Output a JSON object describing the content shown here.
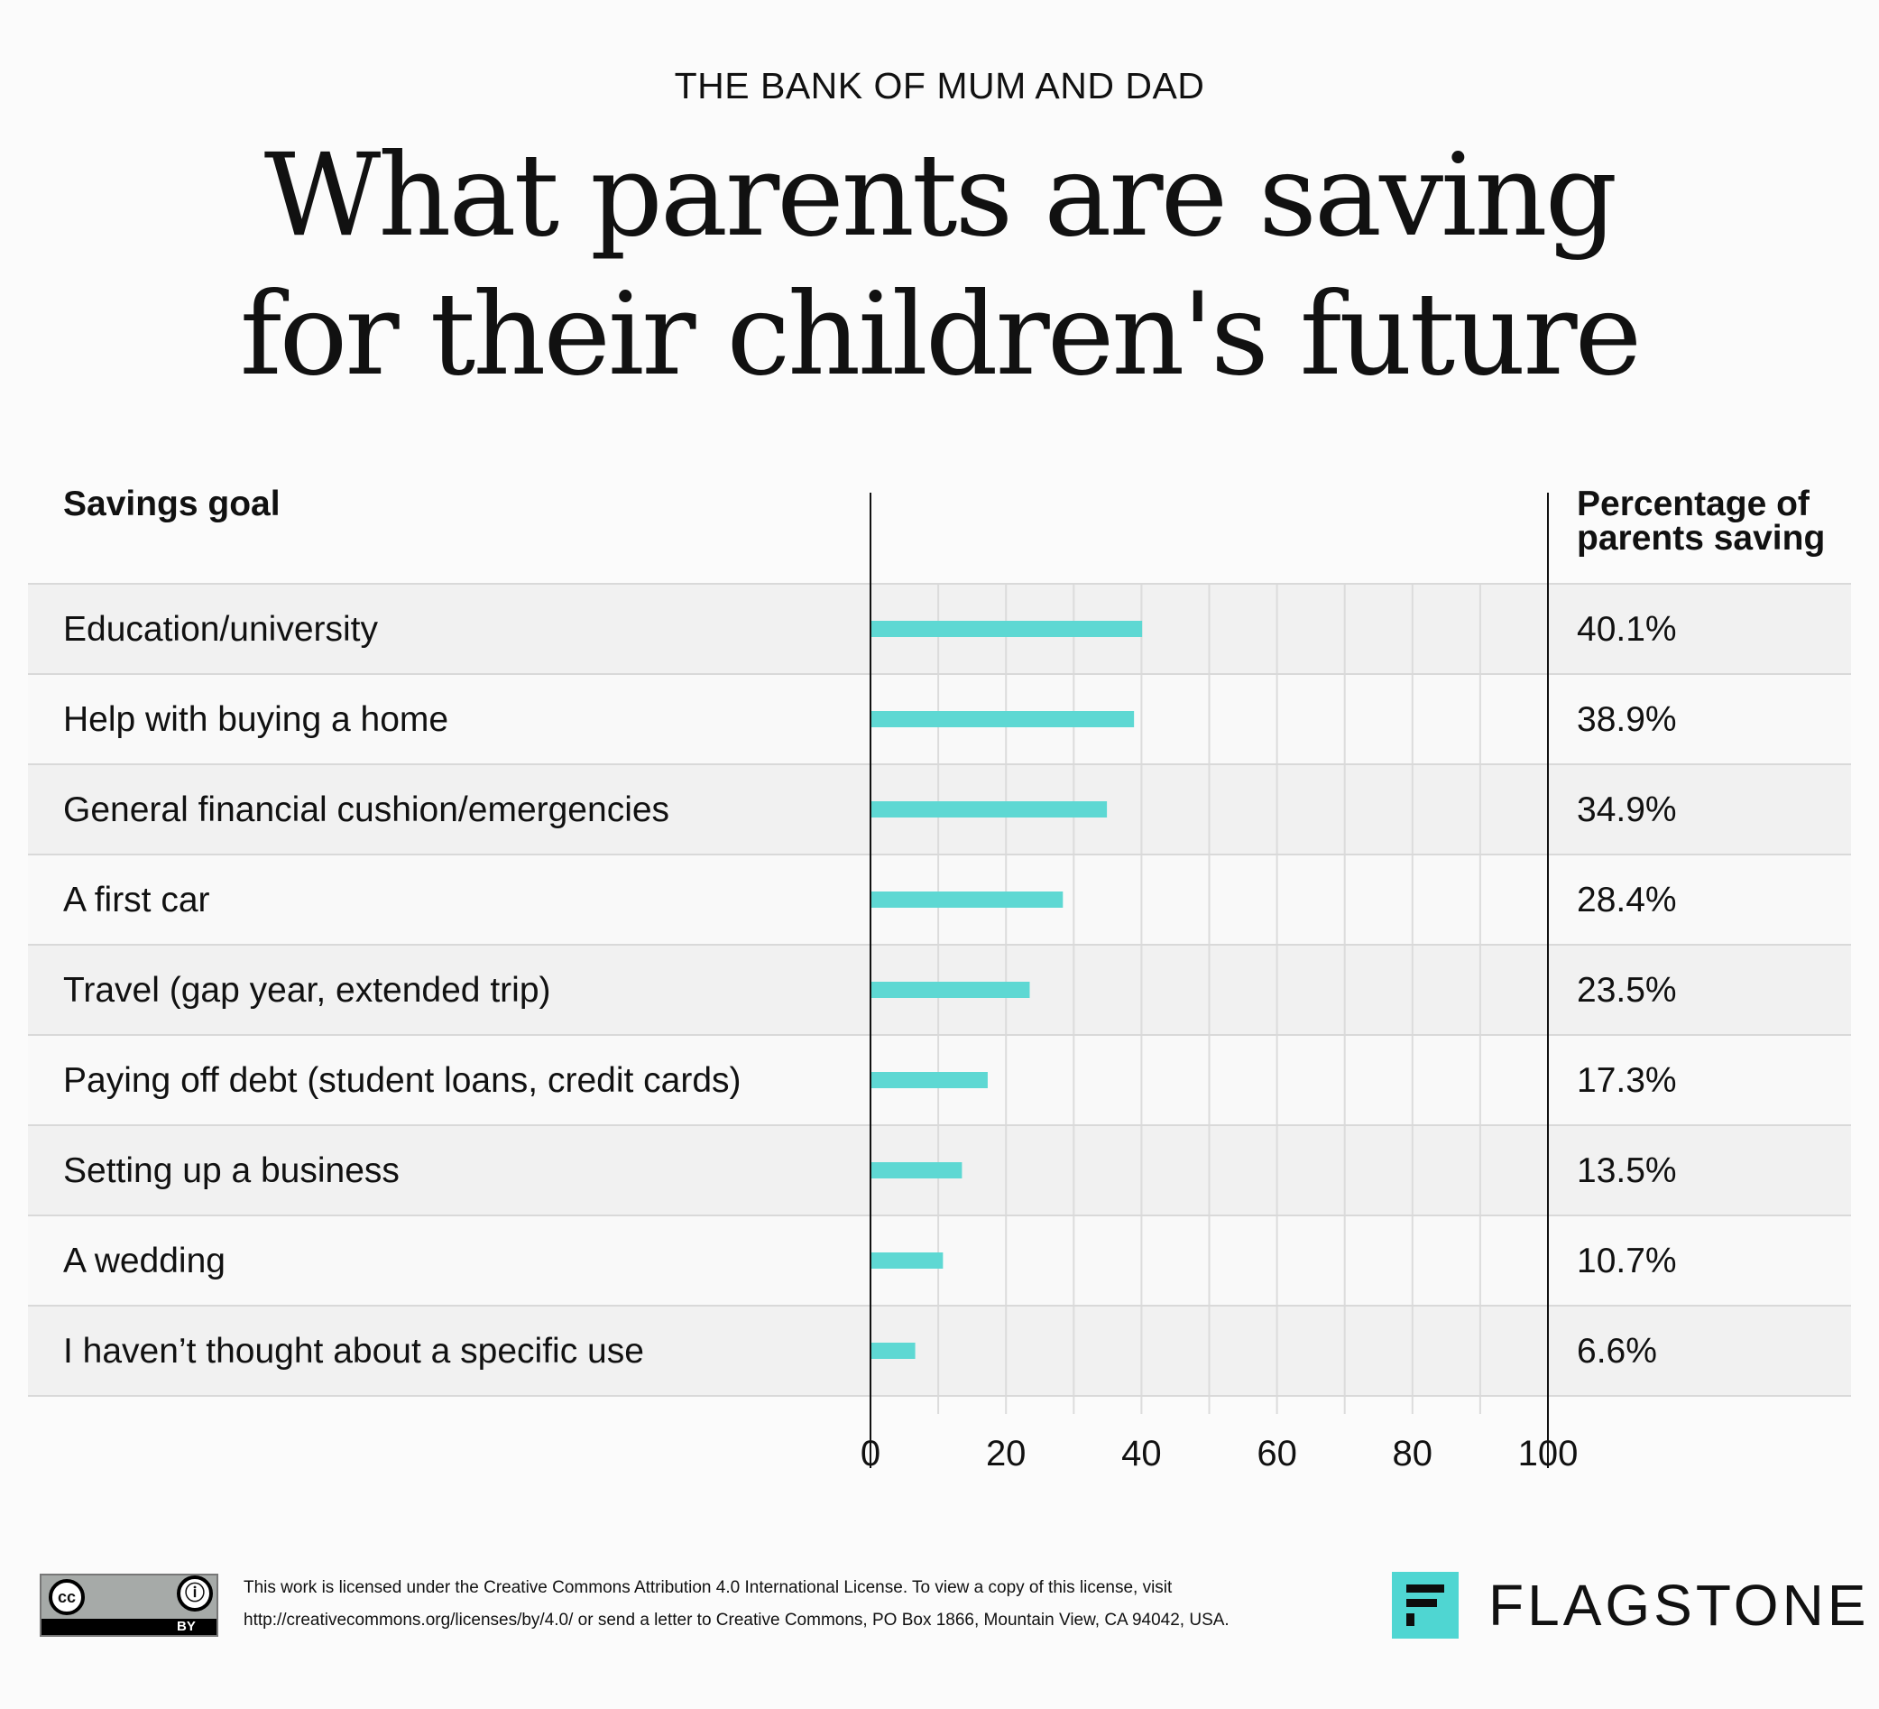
{
  "header": {
    "kicker": "THE BANK OF MUM AND DAD",
    "title_line1": "What parents are saving",
    "title_line2": "for their children's future"
  },
  "columns": {
    "goal_header": "Savings goal",
    "pct_header_line1": "Percentage of",
    "pct_header_line2": "parents saving"
  },
  "chart_data": {
    "type": "bar",
    "orientation": "horizontal",
    "categories": [
      "Education/university",
      "Help with buying a home",
      "General financial cushion/emergencies",
      "A first car",
      "Travel (gap year, extended trip)",
      "Paying off debt (student loans, credit cards)",
      "Setting up a business",
      "A wedding",
      "I haven’t thought about a specific use"
    ],
    "values": [
      40.1,
      38.9,
      34.9,
      28.4,
      23.5,
      17.3,
      13.5,
      10.7,
      6.6
    ],
    "value_labels": [
      "40.1%",
      "38.9%",
      "34.9%",
      "28.4%",
      "23.5%",
      "17.3%",
      "13.5%",
      "10.7%",
      "6.6%"
    ],
    "xlim": [
      0,
      100
    ],
    "x_ticks": [
      0,
      20,
      40,
      60,
      80,
      100
    ],
    "grid": true,
    "bar_color": "#5ed8d3"
  },
  "footer": {
    "cc_label": "cc",
    "by_label": "BY",
    "license_line1": "This work is licensed under the Creative Commons Attribution 4.0 International License. To view a copy of this license, visit",
    "license_line2": "http://creativecommons.org/licenses/by/4.0/ or send a letter to Creative Commons, PO Box 1866, Mountain View, CA 94042, USA.",
    "brand_name": "FLAGSTONE",
    "brand_color": "#4fd6d2"
  }
}
